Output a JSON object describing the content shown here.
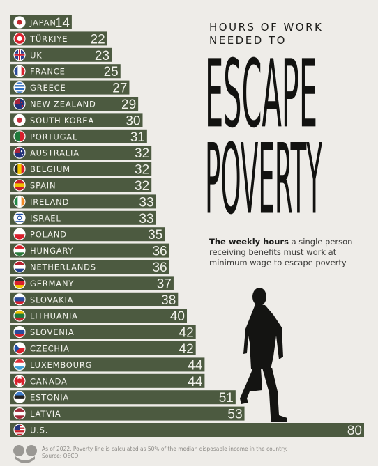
{
  "heading": {
    "top": "HOURS OF WORK NEEDED TO",
    "big_line1": "ESCAPE",
    "big_line2": "POVERTY"
  },
  "subtitle": {
    "bold": "The weekly hours",
    "rest": " a single person receiving benefits must work at minimum wage to escape poverty"
  },
  "footnote": {
    "line1": "As of 2022. Poverty line is calculated as 50% of the median disposable income in the country.",
    "line2": "Source: OECD"
  },
  "colors": {
    "bar": "#4c5a40",
    "background": "#eeece8",
    "text_on_bar": "#f2f2ec"
  },
  "icons": [
    "statista-logo-icon",
    "person-climbing-silhouette-icon"
  ],
  "chart_data": {
    "type": "bar",
    "orientation": "horizontal",
    "title": "HOURS OF WORK NEEDED TO ESCAPE POVERTY",
    "categories": [
      "JAPAN",
      "TÜRKIYE",
      "UK",
      "FRANCE",
      "GREECE",
      "NEW ZEALAND",
      "SOUTH KOREA",
      "PORTUGAL",
      "AUSTRALIA",
      "BELGIUM",
      "SPAIN",
      "IRELAND",
      "ISRAEL",
      "POLAND",
      "HUNGARY",
      "NETHERLANDS",
      "GERMANY",
      "SLOVAKIA",
      "LITHUANIA",
      "SLOVENIA",
      "CZECHIA",
      "LUXEMBOURG",
      "CANADA",
      "ESTONIA",
      "LATVIA",
      "U.S."
    ],
    "values": [
      14,
      22,
      23,
      25,
      27,
      29,
      30,
      31,
      32,
      32,
      32,
      33,
      33,
      35,
      36,
      36,
      37,
      38,
      40,
      42,
      42,
      44,
      44,
      51,
      53,
      80
    ],
    "xlabel": "",
    "ylabel": "",
    "xlim": [
      0,
      80
    ],
    "grid": false,
    "legend": "none"
  }
}
